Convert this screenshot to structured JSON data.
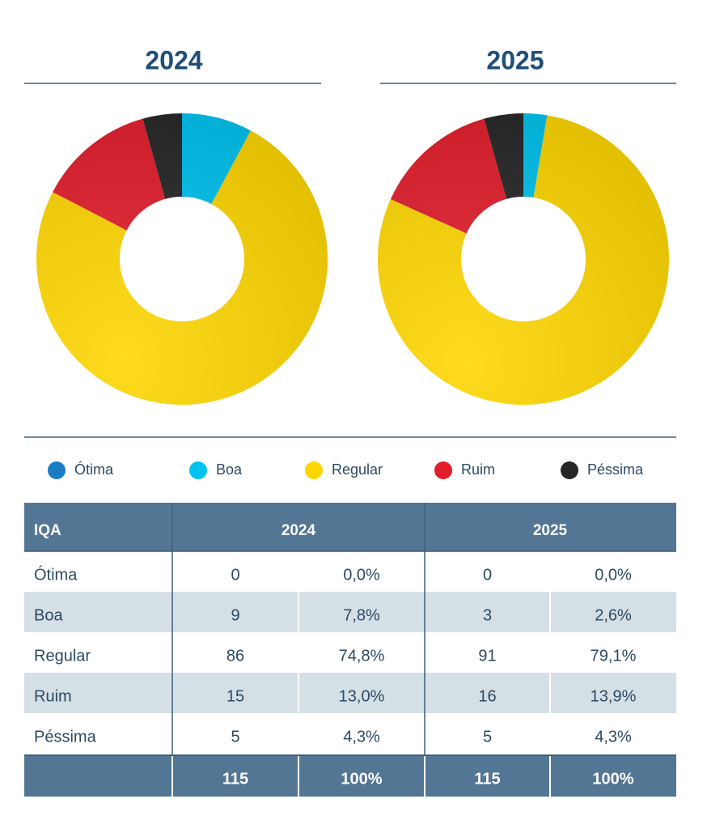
{
  "chart_data": [
    {
      "type": "pie",
      "title": "2024",
      "categories": [
        "Ótima",
        "Boa",
        "Regular",
        "Ruim",
        "Péssima"
      ],
      "values": [
        0,
        9,
        86,
        15,
        5
      ],
      "colors": [
        "#1a7cc4",
        "#00c3f0",
        "#ffd600",
        "#e31d2b",
        "#262626"
      ],
      "donut": true
    },
    {
      "type": "pie",
      "title": "2025",
      "categories": [
        "Ótima",
        "Boa",
        "Regular",
        "Ruim",
        "Péssima"
      ],
      "values": [
        0,
        3,
        91,
        16,
        5
      ],
      "colors": [
        "#1a7cc4",
        "#00c3f0",
        "#ffd600",
        "#e31d2b",
        "#262626"
      ],
      "donut": true
    }
  ],
  "table": {
    "header": [
      "IQA",
      "2024",
      "2025"
    ],
    "rows": [
      [
        "Ótima",
        0,
        "0,0%",
        0,
        "0,0%"
      ],
      [
        "Boa",
        9,
        "7,8%",
        3,
        "2,6%"
      ],
      [
        "Regular",
        86,
        "74,8%",
        91,
        "79,1%"
      ],
      [
        "Ruim",
        15,
        "13,0%",
        16,
        "13,9%"
      ],
      [
        "Péssima",
        5,
        "4,3%",
        5,
        "4,3%"
      ]
    ],
    "footer": [
      115,
      "100%",
      115,
      "100%"
    ]
  }
}
